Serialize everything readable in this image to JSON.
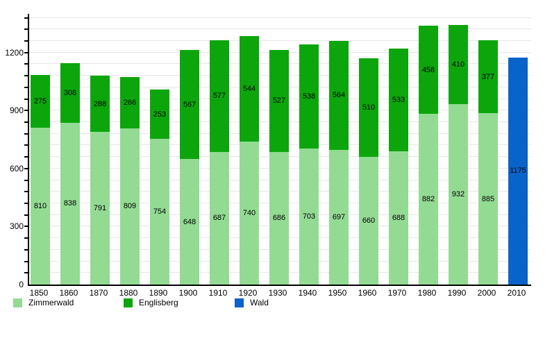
{
  "chart_data": {
    "type": "bar",
    "stacked": true,
    "title": "",
    "xlabel": "",
    "ylabel": "",
    "categories": [
      "1850",
      "1860",
      "1870",
      "1880",
      "1890",
      "1900",
      "1910",
      "1920",
      "1930",
      "1940",
      "1950",
      "1960",
      "1970",
      "1980",
      "1990",
      "2000",
      "2010"
    ],
    "series": [
      {
        "name": "Zimmerwald",
        "color": "#93DB93",
        "values": [
          810,
          838,
          791,
          809,
          754,
          648,
          687,
          740,
          686,
          703,
          697,
          660,
          688,
          882,
          932,
          885,
          null
        ]
      },
      {
        "name": "Englisberg",
        "color": "#0CA60C",
        "values": [
          275,
          308,
          288,
          266,
          253,
          567,
          577,
          544,
          527,
          538,
          564,
          510,
          533,
          458,
          410,
          377,
          null
        ]
      },
      {
        "name": "Wald",
        "color": "#0A63C8",
        "values": [
          null,
          null,
          null,
          null,
          null,
          null,
          null,
          null,
          null,
          null,
          null,
          null,
          null,
          null,
          null,
          null,
          1175
        ]
      }
    ],
    "ylim": [
      0,
      1400
    ],
    "yticks": [
      0,
      300,
      600,
      900,
      1200
    ],
    "minor_grid_step": 60,
    "grid": true,
    "legend_position": "bottom",
    "value_labels": "inside-center",
    "axis_color": "#000000",
    "grid_color": "#e7e7e7"
  }
}
